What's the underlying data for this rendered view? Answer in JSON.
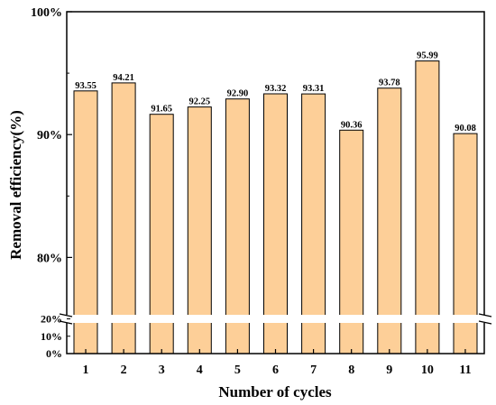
{
  "chart_data": {
    "type": "bar",
    "xlabel": "Number of cycles",
    "ylabel": "Removal efficiency(%)",
    "categories": [
      "1",
      "2",
      "3",
      "4",
      "5",
      "6",
      "7",
      "8",
      "9",
      "10",
      "11"
    ],
    "values": [
      93.55,
      94.21,
      91.65,
      92.25,
      92.9,
      93.32,
      93.31,
      90.36,
      93.78,
      95.99,
      90.08
    ],
    "value_labels": [
      "93.55",
      "94.21",
      "91.65",
      "92.25",
      "92.90",
      "93.32",
      "93.31",
      "90.36",
      "93.78",
      "95.99",
      "90.08"
    ],
    "y_axis_break": true,
    "upper_segment": {
      "ylim": [
        75,
        100
      ],
      "ticks": [
        "80%",
        "90%",
        "100%"
      ],
      "tick_values": [
        80,
        90,
        100
      ]
    },
    "lower_segment": {
      "ylim": [
        0,
        20
      ],
      "ticks": [
        "0%",
        "10%",
        "20%"
      ],
      "tick_values": [
        0,
        10,
        20
      ]
    },
    "bar_color": "#FDCF98",
    "bar_edge_color": "#000000",
    "grid": false,
    "legend": false
  }
}
